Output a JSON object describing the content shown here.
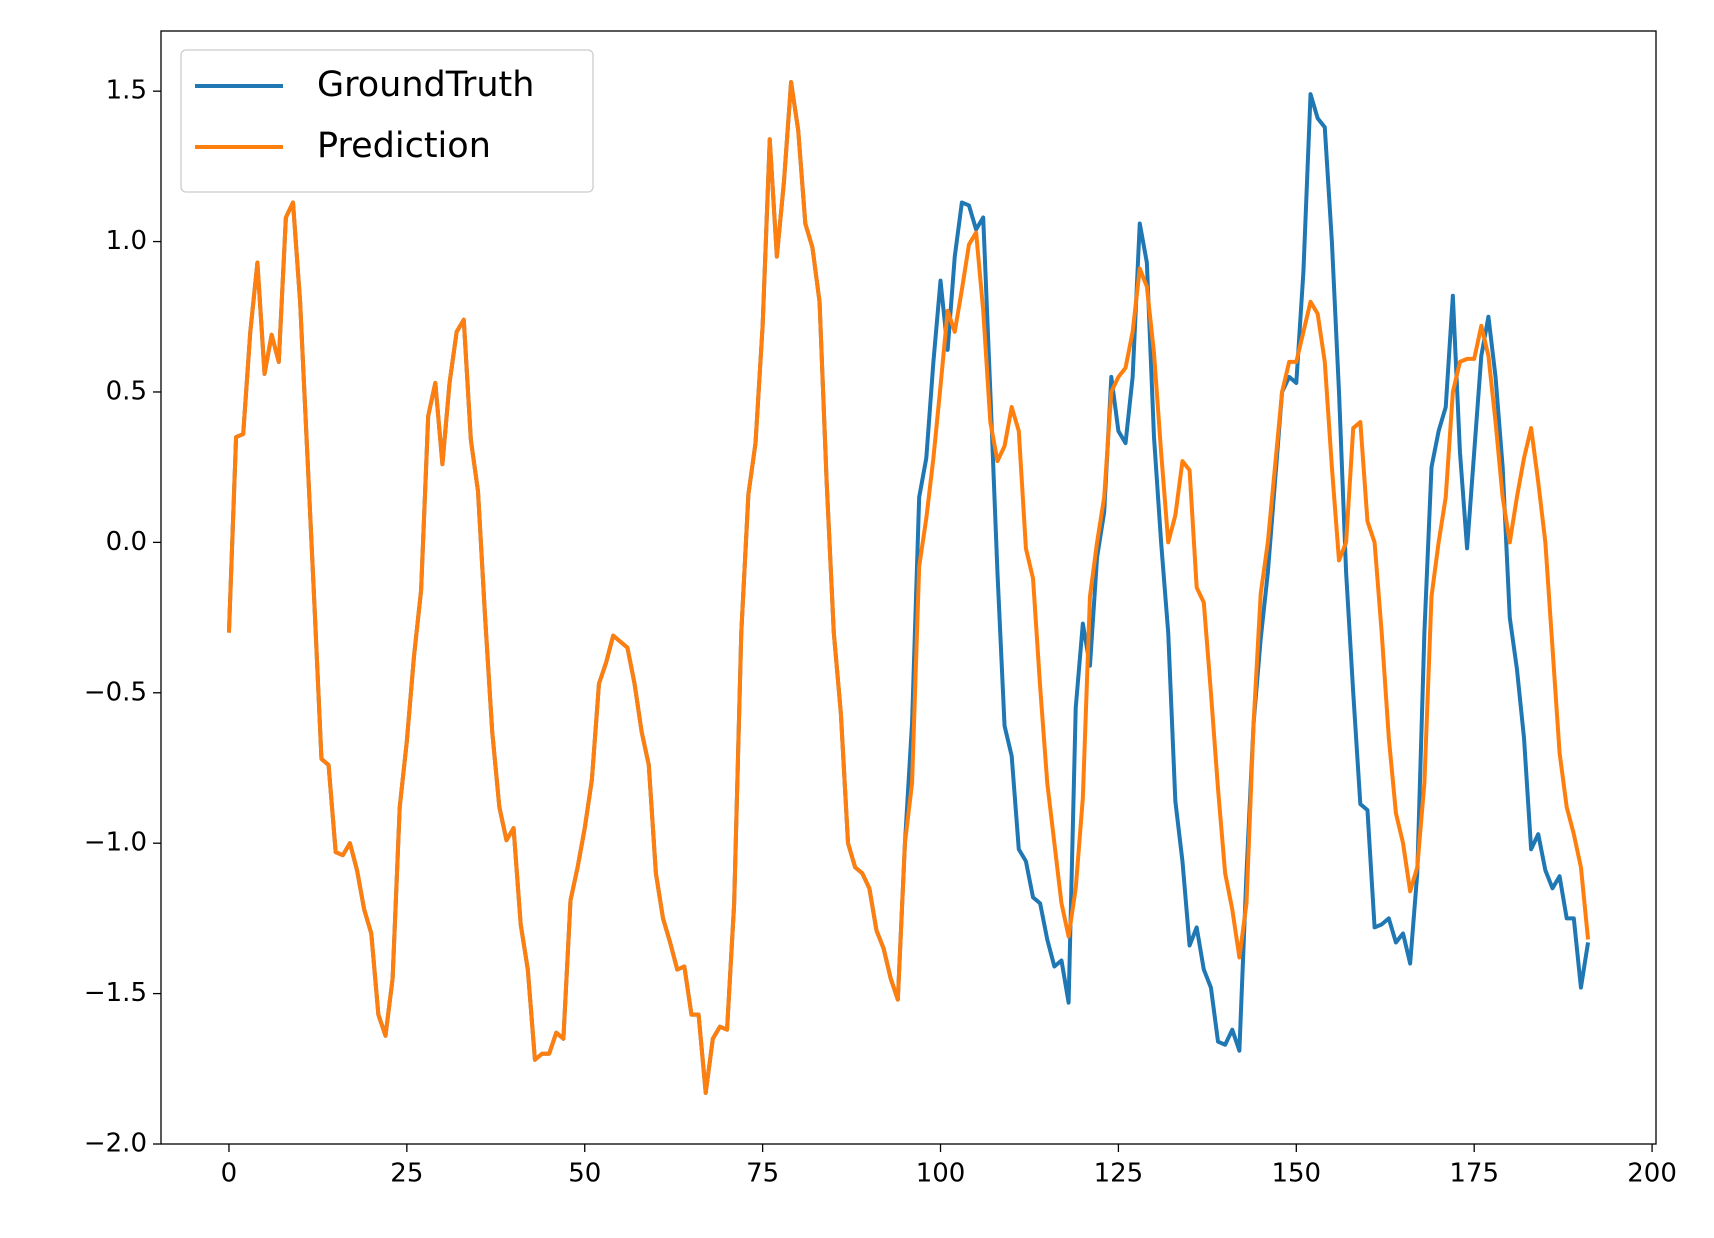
{
  "chart_data": {
    "type": "line",
    "x": [
      0,
      1,
      2,
      3,
      4,
      5,
      6,
      7,
      8,
      9,
      10,
      11,
      12,
      13,
      14,
      15,
      16,
      17,
      18,
      19,
      20,
      21,
      22,
      23,
      24,
      25,
      26,
      27,
      28,
      29,
      30,
      31,
      32,
      33,
      34,
      35,
      36,
      37,
      38,
      39,
      40,
      41,
      42,
      43,
      44,
      45,
      46,
      47,
      48,
      49,
      50,
      51,
      52,
      53,
      54,
      55,
      56,
      57,
      58,
      59,
      60,
      61,
      62,
      63,
      64,
      65,
      66,
      67,
      68,
      69,
      70,
      71,
      72,
      73,
      74,
      75,
      76,
      77,
      78,
      79,
      80,
      81,
      82,
      83,
      84,
      85,
      86,
      87,
      88,
      89,
      90,
      91,
      92,
      93,
      94,
      95,
      96,
      97,
      98,
      99,
      100,
      101,
      102,
      103,
      104,
      105,
      106,
      107,
      108,
      109,
      110,
      111,
      112,
      113,
      114,
      115,
      116,
      117,
      118,
      119,
      120,
      121,
      122,
      123,
      124,
      125,
      126,
      127,
      128,
      129,
      130,
      131,
      132,
      133,
      134,
      135,
      136,
      137,
      138,
      139,
      140,
      141,
      142,
      143,
      144,
      145,
      146,
      147,
      148,
      149,
      150,
      151,
      152,
      153,
      154,
      155,
      156,
      157,
      158,
      159,
      160,
      161,
      162,
      163,
      164,
      165,
      166,
      167,
      168,
      169,
      170,
      171,
      172,
      173,
      174,
      175,
      176,
      177,
      178,
      179,
      180,
      181,
      182,
      183,
      184,
      185,
      186,
      187,
      188,
      189,
      190,
      191
    ],
    "series": [
      {
        "name": "GroundTruth",
        "color": "#1f77b4",
        "values": [
          -0.3,
          0.35,
          0.36,
          0.7,
          0.93,
          0.56,
          0.69,
          0.6,
          1.08,
          1.13,
          0.8,
          0.3,
          -0.2,
          -0.72,
          -0.74,
          -1.03,
          -1.04,
          -1.0,
          -1.09,
          -1.22,
          -1.3,
          -1.57,
          -1.64,
          -1.45,
          -0.88,
          -0.66,
          -0.38,
          -0.16,
          0.42,
          0.53,
          0.26,
          0.53,
          0.7,
          0.74,
          0.34,
          0.17,
          -0.25,
          -0.63,
          -0.88,
          -0.99,
          -0.95,
          -1.27,
          -1.42,
          -1.72,
          -1.7,
          -1.7,
          -1.63,
          -1.65,
          -1.19,
          -1.08,
          -0.95,
          -0.79,
          -0.47,
          -0.4,
          -0.31,
          -0.33,
          -0.35,
          -0.47,
          -0.63,
          -0.74,
          -1.1,
          -1.25,
          -1.33,
          -1.42,
          -1.41,
          -1.57,
          -1.57,
          -1.83,
          -1.65,
          -1.61,
          -1.62,
          -1.2,
          -0.3,
          0.16,
          0.33,
          0.72,
          1.34,
          0.95,
          1.2,
          1.53,
          1.37,
          1.06,
          0.98,
          0.8,
          0.2,
          -0.3,
          -0.57,
          -1.0,
          -1.08,
          -1.1,
          -1.15,
          -1.29,
          -1.35,
          -1.45,
          -1.52,
          -1.0,
          -0.6,
          0.15,
          0.28,
          0.6,
          0.87,
          0.64,
          0.95,
          1.13,
          1.12,
          1.04,
          1.08,
          0.5,
          -0.1,
          -0.61,
          -0.71,
          -1.02,
          -1.06,
          -1.18,
          -1.2,
          -1.32,
          -1.41,
          -1.39,
          -1.53,
          -0.55,
          -0.27,
          -0.41,
          -0.05,
          0.1,
          0.55,
          0.37,
          0.33,
          0.55,
          1.06,
          0.93,
          0.35,
          0.0,
          -0.3,
          -0.86,
          -1.06,
          -1.34,
          -1.28,
          -1.42,
          -1.48,
          -1.66,
          -1.67,
          -1.62,
          -1.69,
          -1.1,
          -0.6,
          -0.32,
          -0.1,
          0.2,
          0.5,
          0.55,
          0.53,
          0.9,
          1.49,
          1.41,
          1.38,
          1.0,
          0.5,
          -0.1,
          -0.5,
          -0.87,
          -0.89,
          -1.28,
          -1.27,
          -1.25,
          -1.33,
          -1.3,
          -1.4,
          -1.1,
          -0.3,
          0.25,
          0.37,
          0.45,
          0.82,
          0.3,
          -0.02,
          0.3,
          0.62,
          0.75,
          0.55,
          0.25,
          -0.25,
          -0.42,
          -0.65,
          -1.02,
          -0.97,
          -1.09,
          -1.15,
          -1.11,
          -1.25,
          -1.25,
          -1.48,
          -1.33
        ]
      },
      {
        "name": "Prediction",
        "color": "#ff7f0e",
        "values": [
          -0.3,
          0.35,
          0.36,
          0.7,
          0.93,
          0.56,
          0.69,
          0.6,
          1.08,
          1.13,
          0.8,
          0.3,
          -0.2,
          -0.72,
          -0.74,
          -1.03,
          -1.04,
          -1.0,
          -1.09,
          -1.22,
          -1.3,
          -1.57,
          -1.64,
          -1.45,
          -0.88,
          -0.66,
          -0.38,
          -0.16,
          0.42,
          0.53,
          0.26,
          0.53,
          0.7,
          0.74,
          0.34,
          0.17,
          -0.25,
          -0.63,
          -0.88,
          -0.99,
          -0.95,
          -1.27,
          -1.42,
          -1.72,
          -1.7,
          -1.7,
          -1.63,
          -1.65,
          -1.19,
          -1.08,
          -0.95,
          -0.79,
          -0.47,
          -0.4,
          -0.31,
          -0.33,
          -0.35,
          -0.47,
          -0.63,
          -0.74,
          -1.1,
          -1.25,
          -1.33,
          -1.42,
          -1.41,
          -1.57,
          -1.57,
          -1.83,
          -1.65,
          -1.61,
          -1.62,
          -1.2,
          -0.3,
          0.16,
          0.33,
          0.72,
          1.34,
          0.95,
          1.2,
          1.53,
          1.37,
          1.06,
          0.98,
          0.8,
          0.2,
          -0.3,
          -0.57,
          -1.0,
          -1.08,
          -1.1,
          -1.15,
          -1.29,
          -1.35,
          -1.45,
          -1.52,
          -1.0,
          -0.8,
          -0.08,
          0.08,
          0.28,
          0.52,
          0.77,
          0.7,
          0.84,
          0.99,
          1.03,
          0.77,
          0.4,
          0.27,
          0.32,
          0.45,
          0.37,
          -0.02,
          -0.12,
          -0.48,
          -0.8,
          -1.0,
          -1.2,
          -1.31,
          -1.15,
          -0.85,
          -0.18,
          0.0,
          0.15,
          0.5,
          0.55,
          0.58,
          0.7,
          0.91,
          0.85,
          0.63,
          0.3,
          0.0,
          0.09,
          0.27,
          0.24,
          -0.15,
          -0.2,
          -0.5,
          -0.82,
          -1.1,
          -1.22,
          -1.38,
          -1.2,
          -0.6,
          -0.17,
          0.0,
          0.25,
          0.5,
          0.6,
          0.6,
          0.7,
          0.8,
          0.76,
          0.6,
          0.25,
          -0.06,
          0.0,
          0.38,
          0.4,
          0.07,
          0.0,
          -0.3,
          -0.65,
          -0.9,
          -1.0,
          -1.16,
          -1.08,
          -0.8,
          -0.18,
          0.0,
          0.15,
          0.5,
          0.6,
          0.61,
          0.61,
          0.72,
          0.62,
          0.4,
          0.15,
          0.0,
          0.15,
          0.28,
          0.38,
          0.2,
          0.0,
          -0.35,
          -0.7,
          -0.88,
          -0.97,
          -1.08,
          -1.32
        ]
      }
    ],
    "xlim": [
      -9.55,
      200.55
    ],
    "xticks": [
      0,
      25,
      50,
      75,
      100,
      125,
      150,
      175,
      200
    ],
    "ylim": [
      -2.0,
      1.7
    ],
    "yticks": [
      {
        "value": -2.0,
        "label": "−2.0"
      },
      {
        "value": -1.5,
        "label": "−1.5"
      },
      {
        "value": -1.0,
        "label": "−1.0"
      },
      {
        "value": -0.5,
        "label": "−0.5"
      },
      {
        "value": 0.0,
        "label": "0.0"
      },
      0.5,
      {
        "value": 1.0,
        "label": "1.0"
      },
      1.5
    ],
    "legend": "upper left",
    "grid": false
  }
}
